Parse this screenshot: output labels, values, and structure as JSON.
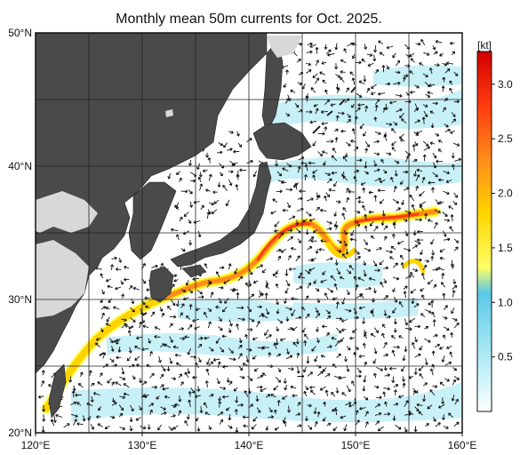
{
  "title": "Monthly mean 50m currents for Oct. 2025.",
  "map": {
    "lon_range": [
      120,
      160
    ],
    "lat_range": [
      20,
      50
    ],
    "x_ticks": [
      {
        "value": 120,
        "label": "120°E"
      },
      {
        "value": 130,
        "label": "130°E"
      },
      {
        "value": 140,
        "label": "140°E"
      },
      {
        "value": 150,
        "label": "150°E"
      },
      {
        "value": 160,
        "label": "160°E"
      }
    ],
    "y_ticks": [
      {
        "value": 20,
        "label": "20°N"
      },
      {
        "value": 30,
        "label": "30°N"
      },
      {
        "value": 40,
        "label": "40°N"
      },
      {
        "value": 50,
        "label": "50°N"
      }
    ],
    "grid": true,
    "land_color": "#4a4a4a",
    "shelf_color": "#d8d8d8"
  },
  "colorbar": {
    "unit": "[kt]",
    "range": [
      0,
      3.3
    ],
    "ticks": [
      "0.5",
      "1.0",
      "1.5",
      "2.0",
      "2.5",
      "3.0"
    ],
    "tick_values": [
      0.5,
      1.0,
      1.5,
      2.0,
      2.5,
      3.0
    ],
    "colors": [
      "#ffffff",
      "#a6ecf5",
      "#5bc8e6",
      "#ffff66",
      "#ffd400",
      "#ff8c1a",
      "#ff3b0f",
      "#d10000"
    ]
  }
}
